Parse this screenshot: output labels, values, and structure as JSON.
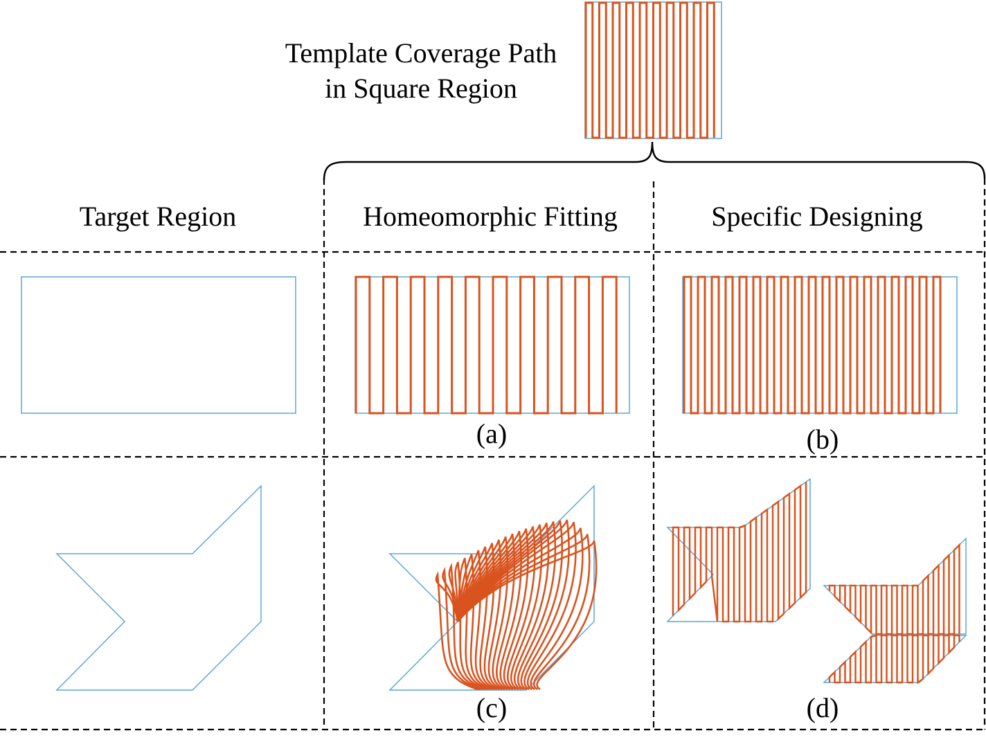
{
  "header": {
    "title_line1": "Template Coverage Path",
    "title_line2": "in Square Region"
  },
  "columns": {
    "target": "Target Region",
    "homeomorphic": "Homeomorphic Fitting",
    "specific": "Specific Designing"
  },
  "labels": {
    "a": "(a)",
    "b": "(b)",
    "c": "(c)",
    "d": "(d)"
  },
  "colors": {
    "boundary": "#5aa6d6",
    "path": "#d9531e",
    "divider": "#000000"
  }
}
